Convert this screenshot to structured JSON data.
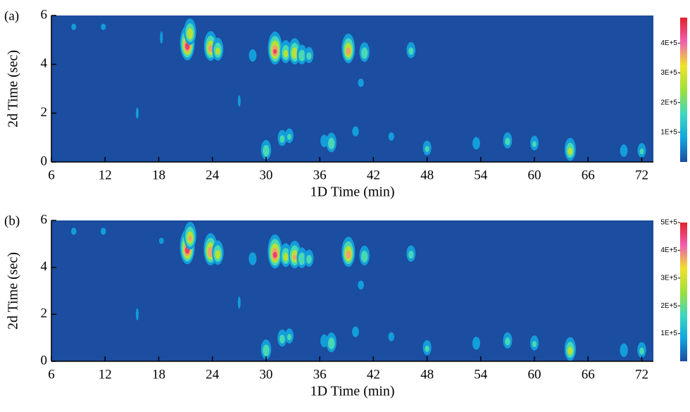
{
  "chart_data": [
    {
      "type": "contour",
      "panel_label": "(a)",
      "x_label": "1D Time (min)",
      "y_label": "2d Time (sec)",
      "xlim": [
        6,
        73.3
      ],
      "ylim": [
        0,
        6
      ],
      "xticks": [
        6,
        12,
        18,
        24,
        30,
        36,
        42,
        48,
        54,
        60,
        66,
        72
      ],
      "yticks": [
        0,
        2,
        4,
        6
      ],
      "clim": [
        0,
        486000
      ],
      "cticks": [
        {
          "value": 100000,
          "label": "1E+5"
        },
        {
          "value": 200000,
          "label": "2E+5"
        },
        {
          "value": 300000,
          "label": "3E+5"
        },
        {
          "value": 400000,
          "label": "4E+5"
        }
      ],
      "background": "#1b4da0",
      "colormap": [
        "#1b4da0",
        "#12a6e0",
        "#3fd7c0",
        "#9ee03a",
        "#f0e22a",
        "#f060b0",
        "#e5202a"
      ],
      "x": [
        21.2,
        21.5,
        23.8,
        24.6,
        28.5,
        31.0,
        32.2,
        33.2,
        34.0,
        34.8,
        39.2,
        41.0,
        46.2,
        40.6,
        8.5,
        11.8,
        18.3,
        27.0,
        15.6,
        30.0,
        31.8,
        32.6,
        36.5,
        37.3,
        40.0,
        44.0,
        48.0,
        53.5,
        57.0,
        60.0,
        64.0,
        70.0,
        72.0
      ],
      "y": [
        4.7,
        5.2,
        4.6,
        4.5,
        4.3,
        4.5,
        4.4,
        4.4,
        4.3,
        4.3,
        4.5,
        4.4,
        4.5,
        3.2,
        5.5,
        5.5,
        5.1,
        2.5,
        2.0,
        0.4,
        0.9,
        1.0,
        0.8,
        0.7,
        1.2,
        1.0,
        0.5,
        0.7,
        0.8,
        0.7,
        0.4,
        0.4,
        0.4
      ],
      "values": [
        480000,
        350000,
        400000,
        300000,
        150000,
        450000,
        300000,
        350000,
        250000,
        200000,
        400000,
        250000,
        200000,
        100000,
        80000,
        80000,
        70000,
        60000,
        60000,
        250000,
        200000,
        180000,
        150000,
        250000,
        120000,
        100000,
        180000,
        150000,
        200000,
        180000,
        300000,
        150000,
        180000
      ]
    },
    {
      "type": "contour",
      "panel_label": "(b)",
      "x_label": "1D Time (min)",
      "y_label": "2d Time (sec)",
      "xlim": [
        6,
        73.3
      ],
      "ylim": [
        0,
        6
      ],
      "xticks": [
        6,
        12,
        18,
        24,
        30,
        36,
        42,
        48,
        54,
        60,
        66,
        72
      ],
      "yticks": [
        0,
        2,
        4,
        6
      ],
      "clim": [
        0,
        500000
      ],
      "cticks": [
        {
          "value": 100000,
          "label": "1E+5"
        },
        {
          "value": 200000,
          "label": "2E+5"
        },
        {
          "value": 300000,
          "label": "3E+5"
        },
        {
          "value": 400000,
          "label": "4E+5"
        },
        {
          "value": 500000,
          "label": "5E+5"
        }
      ],
      "background": "#1b4da0",
      "colormap": [
        "#1b4da0",
        "#12a6e0",
        "#3fd7c0",
        "#9ee03a",
        "#f0e22a",
        "#f060b0",
        "#e5202a"
      ],
      "x": [
        21.2,
        21.5,
        23.8,
        24.6,
        28.5,
        31.0,
        32.2,
        33.2,
        34.0,
        34.8,
        39.2,
        41.0,
        46.2,
        40.6,
        8.5,
        11.8,
        18.3,
        27.0,
        15.6,
        30.0,
        31.8,
        32.6,
        36.5,
        37.3,
        40.0,
        44.0,
        48.0,
        53.5,
        57.0,
        60.0,
        64.0,
        70.0,
        72.0
      ],
      "y": [
        4.7,
        5.2,
        4.6,
        4.5,
        4.3,
        4.5,
        4.4,
        4.4,
        4.3,
        4.3,
        4.5,
        4.4,
        4.5,
        3.2,
        5.5,
        5.5,
        5.1,
        2.5,
        2.0,
        0.4,
        0.9,
        1.0,
        0.8,
        0.7,
        1.2,
        1.0,
        0.5,
        0.7,
        0.8,
        0.7,
        0.4,
        0.4,
        0.4
      ],
      "values": [
        500000,
        380000,
        450000,
        330000,
        160000,
        480000,
        320000,
        380000,
        270000,
        220000,
        420000,
        260000,
        210000,
        110000,
        90000,
        90000,
        80000,
        70000,
        70000,
        260000,
        220000,
        190000,
        160000,
        260000,
        130000,
        110000,
        190000,
        160000,
        210000,
        190000,
        320000,
        170000,
        200000
      ]
    }
  ]
}
